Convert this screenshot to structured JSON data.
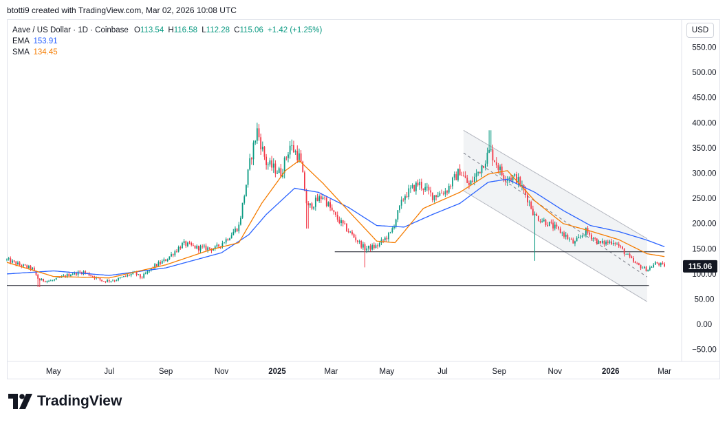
{
  "header": {
    "attribution": "btotti9 created with TradingView.com, Mar 02, 2026 10:08 UTC"
  },
  "legend": {
    "symbol": "Aave / US Dollar · 1D · Coinbase",
    "open_label": "O",
    "open": "113.54",
    "high_label": "H",
    "high": "116.58",
    "low_label": "L",
    "low": "112.28",
    "close_label": "C",
    "close": "115.06",
    "change": "+1.42 (+1.25%)",
    "ema_label": "EMA",
    "ema_value": "153.91",
    "sma_label": "SMA",
    "sma_value": "134.45"
  },
  "toolbar": {
    "currency_button": "USD"
  },
  "brand": {
    "name": "TradingView"
  },
  "colors": {
    "up": "#089981",
    "down": "#f23645",
    "ema": "#2962ff",
    "sma": "#f57c00",
    "channel_fill": "#eef0f3",
    "channel_line": "#b2b5be",
    "level_line": "#131722",
    "price_tag": "#131722"
  },
  "chart_data": {
    "type": "candlestick",
    "title": "Aave / US Dollar · 1D · Coinbase",
    "price_axis_ticks": [
      550,
      500,
      450,
      400,
      350,
      300,
      250,
      200,
      150,
      100,
      50,
      0,
      -50
    ],
    "price_axis_labels": [
      "550.00",
      "500.00",
      "450.00",
      "400.00",
      "350.00",
      "300.00",
      "250.00",
      "200.00",
      "150.00",
      "100.00",
      "50.00",
      "0.00",
      "−50.00"
    ],
    "ylim": [
      -75,
      580
    ],
    "time_axis_labels": [
      {
        "label": "May",
        "date": "2024-05-01",
        "bold": false
      },
      {
        "label": "Jul",
        "date": "2024-07-01",
        "bold": false
      },
      {
        "label": "Sep",
        "date": "2024-09-01",
        "bold": false
      },
      {
        "label": "Nov",
        "date": "2024-11-01",
        "bold": false
      },
      {
        "label": "2025",
        "date": "2025-01-01",
        "bold": true
      },
      {
        "label": "Mar",
        "date": "2025-03-01",
        "bold": false
      },
      {
        "label": "May",
        "date": "2025-05-01",
        "bold": false
      },
      {
        "label": "Jul",
        "date": "2025-07-01",
        "bold": false
      },
      {
        "label": "Sep",
        "date": "2025-09-01",
        "bold": false
      },
      {
        "label": "Nov",
        "date": "2025-11-01",
        "bold": false
      },
      {
        "label": "2026",
        "date": "2026-01-01",
        "bold": true
      },
      {
        "label": "Mar",
        "date": "2026-03-01",
        "bold": false
      }
    ],
    "xlim": [
      "2024-03-11",
      "2026-03-19"
    ],
    "price_path_closes": [
      [
        "2024-03-11",
        128
      ],
      [
        "2024-03-25",
        118
      ],
      [
        "2024-04-08",
        110
      ],
      [
        "2024-04-15",
        88
      ],
      [
        "2024-04-29",
        86
      ],
      [
        "2024-05-20",
        100
      ],
      [
        "2024-06-03",
        104
      ],
      [
        "2024-06-24",
        86
      ],
      [
        "2024-07-08",
        88
      ],
      [
        "2024-07-29",
        102
      ],
      [
        "2024-08-05",
        92
      ],
      [
        "2024-08-19",
        115
      ],
      [
        "2024-09-01",
        128
      ],
      [
        "2024-09-20",
        160
      ],
      [
        "2024-10-05",
        152
      ],
      [
        "2024-10-25",
        150
      ],
      [
        "2024-11-06",
        168
      ],
      [
        "2024-11-20",
        195
      ],
      [
        "2024-12-03",
        330
      ],
      [
        "2024-12-10",
        385
      ],
      [
        "2024-12-20",
        320
      ],
      [
        "2025-01-05",
        300
      ],
      [
        "2025-01-15",
        355
      ],
      [
        "2025-01-26",
        330
      ],
      [
        "2025-02-03",
        230
      ],
      [
        "2025-02-20",
        255
      ],
      [
        "2025-03-05",
        215
      ],
      [
        "2025-03-20",
        185
      ],
      [
        "2025-04-07",
        150
      ],
      [
        "2025-04-20",
        155
      ],
      [
        "2025-05-05",
        180
      ],
      [
        "2025-05-20",
        255
      ],
      [
        "2025-06-05",
        280
      ],
      [
        "2025-06-20",
        255
      ],
      [
        "2025-07-05",
        265
      ],
      [
        "2025-07-20",
        305
      ],
      [
        "2025-07-30",
        275
      ],
      [
        "2025-08-10",
        305
      ],
      [
        "2025-08-22",
        345
      ],
      [
        "2025-09-05",
        295
      ],
      [
        "2025-09-20",
        290
      ],
      [
        "2025-10-01",
        255
      ],
      [
        "2025-10-10",
        215
      ],
      [
        "2025-10-25",
        200
      ],
      [
        "2025-11-10",
        180
      ],
      [
        "2025-11-22",
        160
      ],
      [
        "2025-12-05",
        185
      ],
      [
        "2025-12-20",
        160
      ],
      [
        "2026-01-05",
        165
      ],
      [
        "2026-01-15",
        145
      ],
      [
        "2026-01-28",
        120
      ],
      [
        "2026-02-10",
        108
      ],
      [
        "2026-02-20",
        122
      ],
      [
        "2026-03-01",
        115
      ]
    ],
    "ema_path": [
      [
        "2024-03-11",
        100
      ],
      [
        "2024-05-01",
        106
      ],
      [
        "2024-07-01",
        97
      ],
      [
        "2024-09-01",
        112
      ],
      [
        "2024-11-01",
        142
      ],
      [
        "2024-12-01",
        178
      ],
      [
        "2024-12-20",
        218
      ],
      [
        "2025-01-20",
        270
      ],
      [
        "2025-02-15",
        262
      ],
      [
        "2025-03-20",
        232
      ],
      [
        "2025-04-20",
        196
      ],
      [
        "2025-05-20",
        193
      ],
      [
        "2025-06-20",
        218
      ],
      [
        "2025-07-20",
        240
      ],
      [
        "2025-08-20",
        282
      ],
      [
        "2025-09-10",
        288
      ],
      [
        "2025-10-10",
        262
      ],
      [
        "2025-11-10",
        226
      ],
      [
        "2025-12-10",
        196
      ],
      [
        "2026-01-10",
        184
      ],
      [
        "2026-02-10",
        167
      ],
      [
        "2026-03-01",
        153.91
      ]
    ],
    "sma_path": [
      [
        "2024-03-11",
        123
      ],
      [
        "2024-05-01",
        95
      ],
      [
        "2024-07-01",
        92
      ],
      [
        "2024-09-01",
        118
      ],
      [
        "2024-10-20",
        148
      ],
      [
        "2024-11-20",
        162
      ],
      [
        "2024-12-15",
        240
      ],
      [
        "2025-01-10",
        305
      ],
      [
        "2025-01-25",
        325
      ],
      [
        "2025-02-20",
        280
      ],
      [
        "2025-03-20",
        225
      ],
      [
        "2025-04-20",
        165
      ],
      [
        "2025-05-10",
        162
      ],
      [
        "2025-06-10",
        230
      ],
      [
        "2025-07-20",
        262
      ],
      [
        "2025-08-20",
        298
      ],
      [
        "2025-09-10",
        305
      ],
      [
        "2025-10-10",
        245
      ],
      [
        "2025-11-10",
        200
      ],
      [
        "2025-12-10",
        185
      ],
      [
        "2026-01-10",
        168
      ],
      [
        "2026-02-10",
        140
      ],
      [
        "2026-03-01",
        134.45
      ]
    ],
    "horizontal_levels": [
      {
        "price": 77,
        "from": "2024-03-11",
        "to": "2026-02-12"
      },
      {
        "price": 144,
        "from": "2025-03-05",
        "to": "2026-03-01"
      }
    ],
    "descending_channel": {
      "start": "2025-07-24",
      "end": "2026-02-10",
      "upper": [
        385,
        170
      ],
      "lower": [
        265,
        45
      ],
      "mid": [
        340,
        94
      ]
    },
    "last_price_tag": "115.06",
    "last_price": 115.06
  }
}
